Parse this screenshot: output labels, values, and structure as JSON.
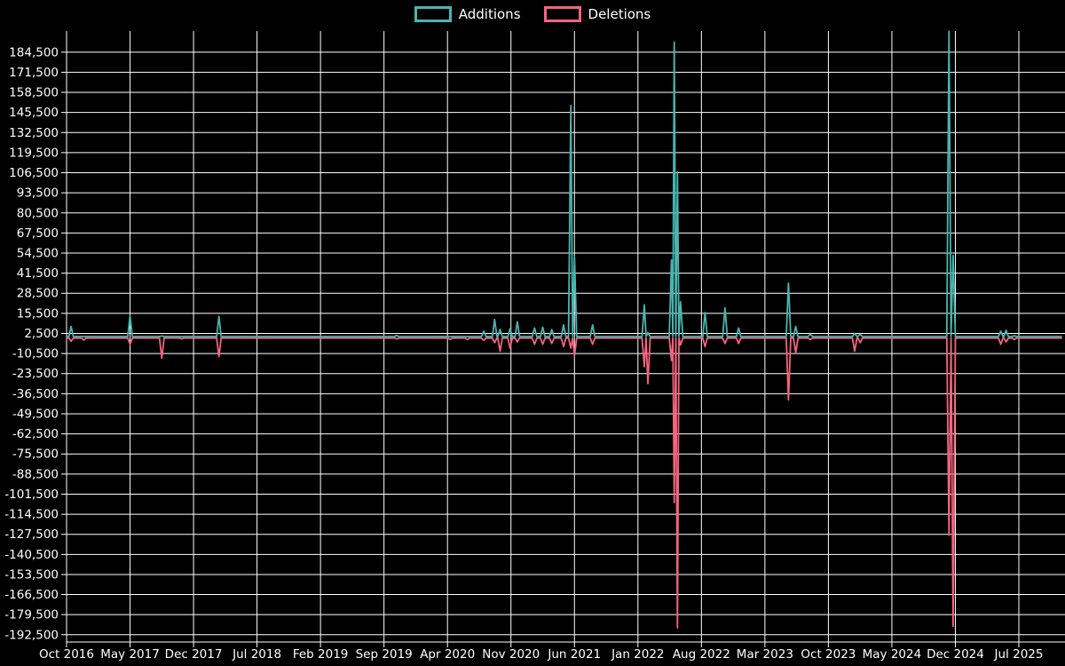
{
  "legend": {
    "additions_label": "Additions",
    "deletions_label": "Deletions"
  },
  "chart_data": {
    "type": "line",
    "title": "",
    "style": {
      "background": "#000000",
      "grid_color": "#ffffff",
      "text_color": "#ffffff",
      "colors": {
        "additions": "#48b5b0",
        "deletions": "#f4647d"
      },
      "grid": "on",
      "legend_position": "top-center"
    },
    "x_axis": {
      "tick_labels": [
        "Oct 2016",
        "May 2017",
        "Dec 2017",
        "Jul 2018",
        "Feb 2019",
        "Sep 2019",
        "Apr 2020",
        "Nov 2020",
        "Jun 2021",
        "Jan 2022",
        "Aug 2022",
        "Mar 2023",
        "Oct 2023",
        "May 2024",
        "Dec 2024",
        "Jul 2025"
      ],
      "tick_interval_months": 7,
      "x_unit": "months since Oct 2016"
    },
    "y_axis": {
      "tick_labels": [
        "184,500",
        "171,500",
        "158,500",
        "145,500",
        "132,500",
        "119,500",
        "106,500",
        "93,500",
        "80,500",
        "67,500",
        "54,500",
        "41,500",
        "28,500",
        "15,500",
        "2,500",
        "-10,500",
        "-23,500",
        "-36,500",
        "-49,500",
        "-62,500",
        "-75,500",
        "-88,500",
        "-101,500",
        "-114,500",
        "-127,500",
        "-140,500",
        "-153,500",
        "-166,500",
        "-179,500",
        "-192,500"
      ],
      "min": -192500,
      "max": 184500,
      "step": 13000
    },
    "series": [
      {
        "name": "Additions",
        "key": "additions",
        "baseline": 500
      },
      {
        "name": "Deletions",
        "key": "deletions",
        "baseline": -500
      }
    ],
    "events": [
      {
        "date": "2016-10",
        "x": 0.5,
        "additions": 7000,
        "deletions": -2500
      },
      {
        "date": "2016-12",
        "x": 1.9,
        "additions": 500,
        "deletions": -1800
      },
      {
        "date": "2017-05",
        "x": 7.0,
        "additions": 14000,
        "deletions": -4500
      },
      {
        "date": "2017-08",
        "x": 10.5,
        "additions": 800,
        "deletions": -13500
      },
      {
        "date": "2017-10",
        "x": 12.7,
        "additions": 400,
        "deletions": -1000
      },
      {
        "date": "2018-03",
        "x": 16.8,
        "additions": 13500,
        "deletions": -12500
      },
      {
        "date": "2019-10",
        "x": 36.4,
        "additions": 1200,
        "deletions": -1000
      },
      {
        "date": "2020-04",
        "x": 42.3,
        "additions": 400,
        "deletions": -1500
      },
      {
        "date": "2020-06",
        "x": 44.2,
        "additions": 400,
        "deletions": -1500
      },
      {
        "date": "2020-08",
        "x": 46.0,
        "additions": 4000,
        "deletions": -2000
      },
      {
        "date": "2020-09",
        "x": 47.2,
        "additions": 11500,
        "deletions": -3500
      },
      {
        "date": "2020-10",
        "x": 47.8,
        "additions": 5000,
        "deletions": -9000
      },
      {
        "date": "2020-11",
        "x": 48.9,
        "additions": 5500,
        "deletions": -7000
      },
      {
        "date": "2020-12",
        "x": 49.7,
        "additions": 10000,
        "deletions": -3000
      },
      {
        "date": "2021-01",
        "x": 51.6,
        "additions": 6000,
        "deletions": -4500
      },
      {
        "date": "2021-02",
        "x": 52.5,
        "additions": 6500,
        "deletions": -4500
      },
      {
        "date": "2021-03",
        "x": 53.5,
        "additions": 5000,
        "deletions": -4000
      },
      {
        "date": "2021-05",
        "x": 54.8,
        "additions": 8000,
        "deletions": -6000
      },
      {
        "date": "2021-06",
        "x": 55.6,
        "additions": 150000,
        "deletions": -7000
      },
      {
        "date": "2021-06",
        "x": 56.0,
        "additions": 52000,
        "deletions": -12000
      },
      {
        "date": "2021-08",
        "x": 58.0,
        "additions": 8000,
        "deletions": -4500
      },
      {
        "date": "2022-01",
        "x": 63.7,
        "additions": 21000,
        "deletions": -19000
      },
      {
        "date": "2022-02",
        "x": 64.1,
        "additions": 3000,
        "deletions": -30000
      },
      {
        "date": "2022-04",
        "x": 66.7,
        "additions": 50000,
        "deletions": -15000
      },
      {
        "date": "2022-05",
        "x": 67.0,
        "additions": 191000,
        "deletions": -107000
      },
      {
        "date": "2022-05",
        "x": 67.35,
        "additions": 107000,
        "deletions": -188000
      },
      {
        "date": "2022-06",
        "x": 67.7,
        "additions": 23000,
        "deletions": -5000
      },
      {
        "date": "2022-08",
        "x": 70.4,
        "additions": 16000,
        "deletions": -6000
      },
      {
        "date": "2022-10",
        "x": 72.6,
        "additions": 19000,
        "deletions": -4000
      },
      {
        "date": "2022-12",
        "x": 74.1,
        "additions": 6000,
        "deletions": -4000
      },
      {
        "date": "2023-05",
        "x": 79.6,
        "additions": 35000,
        "deletions": -40500
      },
      {
        "date": "2023-06",
        "x": 80.4,
        "additions": 7000,
        "deletions": -10000
      },
      {
        "date": "2023-08",
        "x": 82.0,
        "additions": 2000,
        "deletions": -1500
      },
      {
        "date": "2023-12",
        "x": 86.9,
        "additions": 2500,
        "deletions": -9000
      },
      {
        "date": "2024-01",
        "x": 87.5,
        "additions": 2000,
        "deletions": -3500
      },
      {
        "date": "2024-11",
        "x": 97.3,
        "additions": 198000,
        "deletions": -128000
      },
      {
        "date": "2024-12",
        "x": 97.75,
        "additions": 53000,
        "deletions": -187000
      },
      {
        "date": "2025-05",
        "x": 103.0,
        "additions": 4000,
        "deletions": -4500
      },
      {
        "date": "2025-06",
        "x": 103.6,
        "additions": 4500,
        "deletions": -3000
      },
      {
        "date": "2025-06",
        "x": 104.5,
        "additions": 1000,
        "deletions": -1500
      }
    ]
  }
}
